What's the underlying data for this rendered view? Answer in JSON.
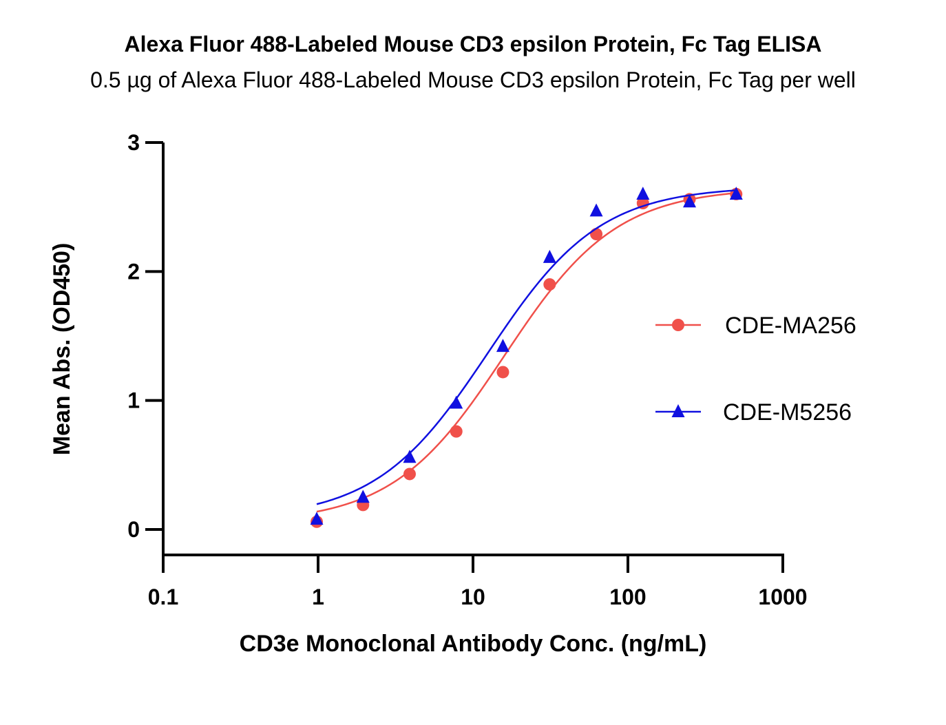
{
  "chart_data": {
    "type": "scatter",
    "title": "Alexa Fluor 488-Labeled Mouse CD3 epsilon Protein, Fc Tag ELISA",
    "subtitle": "0.5 µg of Alexa Fluor 488-Labeled Mouse CD3 epsilon Protein, Fc Tag per well",
    "xlabel": "CD3e Monoclonal Antibody Conc. (ng/mL)",
    "ylabel": "Mean Abs. (OD450)",
    "xscale": "log",
    "xlim": [
      0.1,
      1000
    ],
    "ylim": [
      -0.2,
      3
    ],
    "xticks": [
      {
        "value": 0.1,
        "label": "0.1"
      },
      {
        "value": 1,
        "label": "1"
      },
      {
        "value": 10,
        "label": "10"
      },
      {
        "value": 100,
        "label": "100"
      },
      {
        "value": 1000,
        "label": "1000"
      }
    ],
    "yticks": [
      {
        "value": 0,
        "label": "0"
      },
      {
        "value": 1,
        "label": "1"
      },
      {
        "value": 2,
        "label": "2"
      },
      {
        "value": 3,
        "label": "3"
      }
    ],
    "legend_position": "right",
    "series": [
      {
        "name": "CDE-MA256",
        "color": "#f0504a",
        "marker": "circle",
        "x": [
          0.98,
          1.95,
          3.9,
          7.8,
          15.6,
          31.25,
          62.5,
          125,
          250,
          500
        ],
        "y": [
          0.06,
          0.19,
          0.43,
          0.76,
          1.22,
          1.9,
          2.29,
          2.53,
          2.56,
          2.6
        ],
        "fit": {
          "bottom": 0.05,
          "top": 2.65,
          "ec50": 16.0,
          "hill": 1.2
        }
      },
      {
        "name": "CDE-M5256",
        "color": "#1010e0",
        "marker": "triangle",
        "x": [
          0.98,
          1.95,
          3.9,
          7.8,
          15.6,
          31.25,
          62.5,
          125,
          250,
          500
        ],
        "y": [
          0.08,
          0.25,
          0.56,
          0.98,
          1.42,
          2.11,
          2.47,
          2.6,
          2.54,
          2.6
        ],
        "fit": {
          "bottom": 0.08,
          "top": 2.66,
          "ec50": 12.5,
          "hill": 1.2
        }
      }
    ]
  }
}
